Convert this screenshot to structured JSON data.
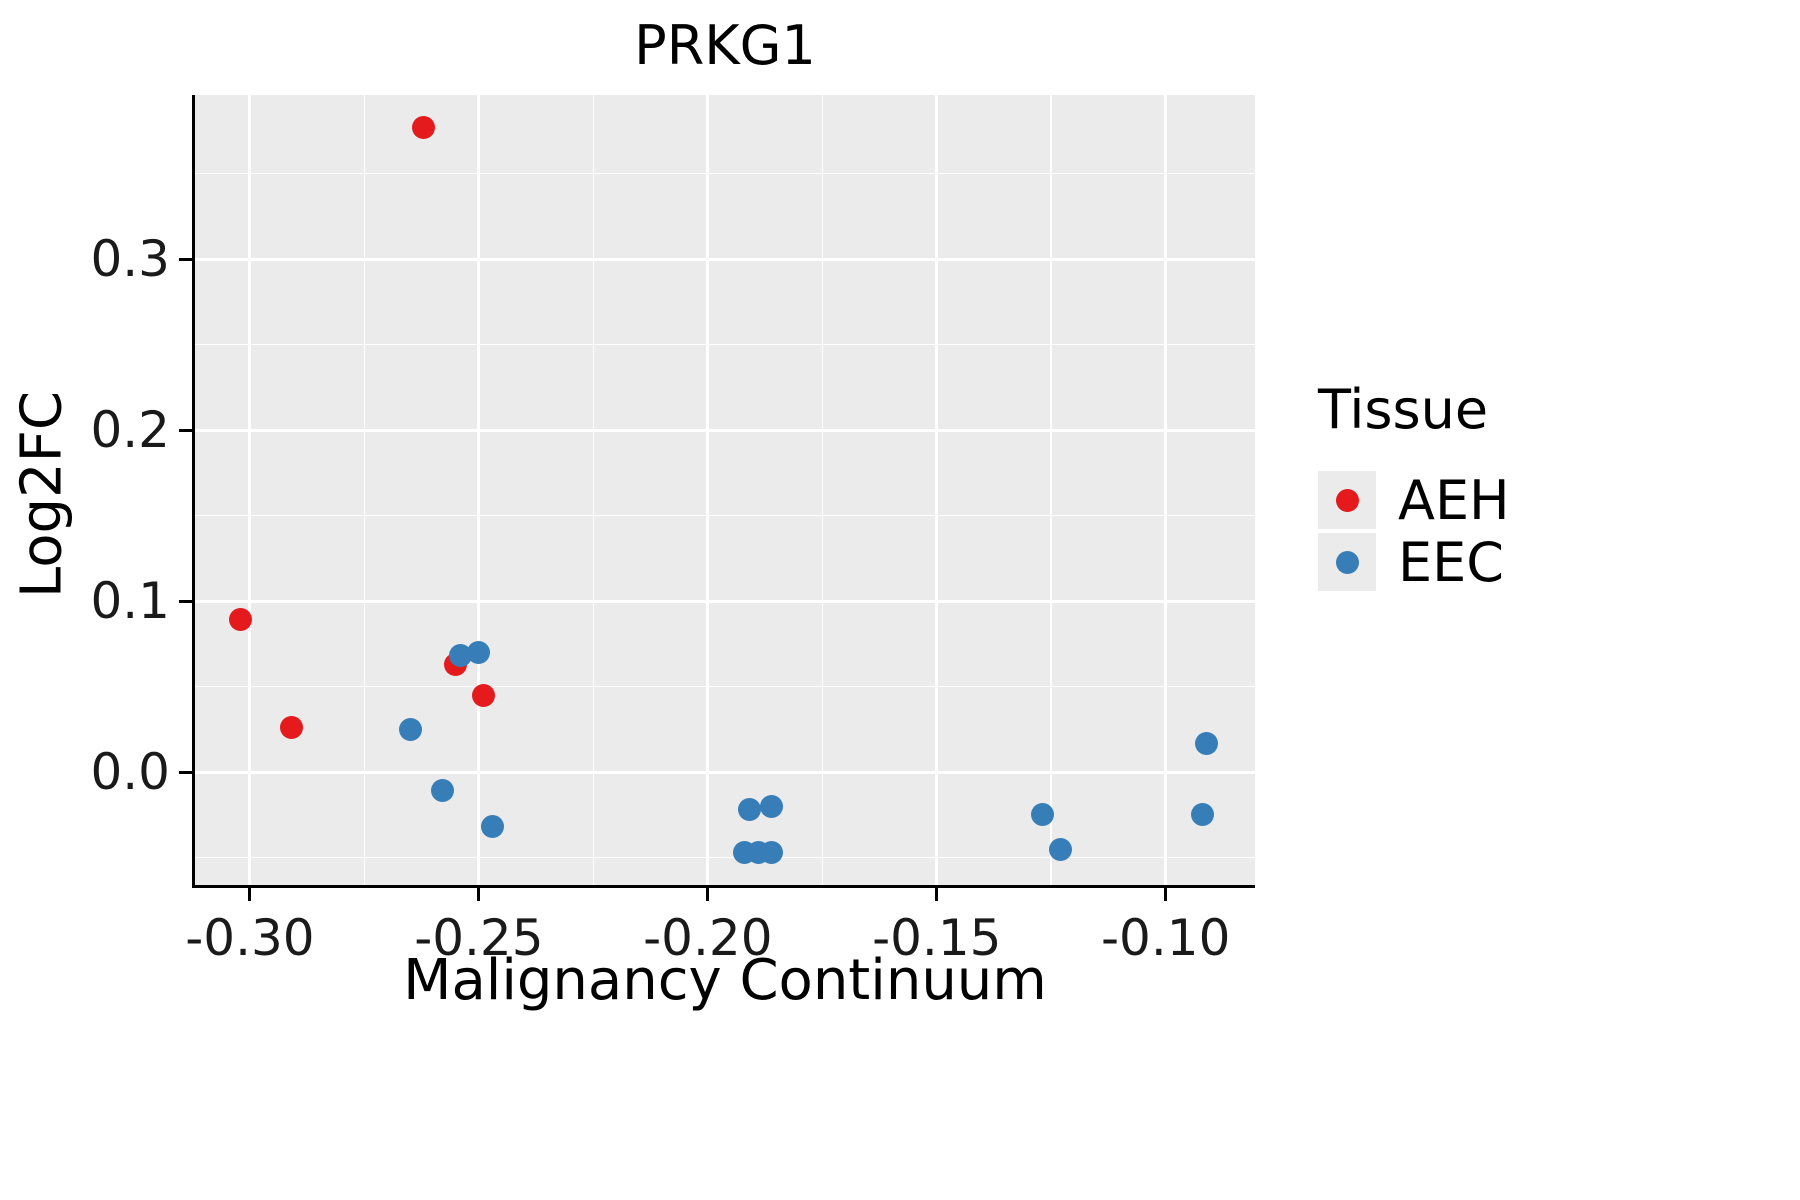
{
  "chart_data": {
    "type": "scatter",
    "title": "PRKG1",
    "xlabel": "Malignancy Continuum",
    "ylabel": "Log2FC",
    "xlim": [
      -0.312,
      -0.0805
    ],
    "ylim": [
      -0.066,
      0.396
    ],
    "x_major_ticks": [
      -0.3,
      -0.25,
      -0.2,
      -0.15,
      -0.1
    ],
    "x_tick_labels": [
      "-0.30",
      "-0.25",
      "-0.20",
      "-0.15",
      "-0.10"
    ],
    "x_minor_ticks": [
      -0.275,
      -0.225,
      -0.175,
      -0.125
    ],
    "y_major_ticks": [
      0.0,
      0.1,
      0.2,
      0.3
    ],
    "y_tick_labels": [
      "0.0",
      "0.1",
      "0.2",
      "0.3"
    ],
    "y_minor_ticks": [
      -0.05,
      0.05,
      0.15,
      0.25,
      0.35
    ],
    "grid": true,
    "panel_background": "#EBEBEB",
    "grid_color": "#FFFFFF",
    "legend": {
      "title": "Tissue",
      "position": "right"
    },
    "series": [
      {
        "name": "AEH",
        "color": "#E41A1C",
        "points": [
          [
            -0.262,
            0.377
          ],
          [
            -0.302,
            0.089
          ],
          [
            -0.291,
            0.026
          ],
          [
            -0.255,
            0.063
          ],
          [
            -0.249,
            0.045
          ]
        ]
      },
      {
        "name": "EEC",
        "color": "#377EB8",
        "points": [
          [
            -0.254,
            0.068
          ],
          [
            -0.25,
            0.07
          ],
          [
            -0.265,
            0.025
          ],
          [
            -0.258,
            -0.011
          ],
          [
            -0.247,
            -0.032
          ],
          [
            -0.191,
            -0.022
          ],
          [
            -0.186,
            -0.02
          ],
          [
            -0.192,
            -0.047
          ],
          [
            -0.189,
            -0.047
          ],
          [
            -0.186,
            -0.047
          ],
          [
            -0.127,
            -0.025
          ],
          [
            -0.123,
            -0.045
          ],
          [
            -0.091,
            0.017
          ],
          [
            -0.092,
            -0.025
          ]
        ]
      }
    ]
  }
}
